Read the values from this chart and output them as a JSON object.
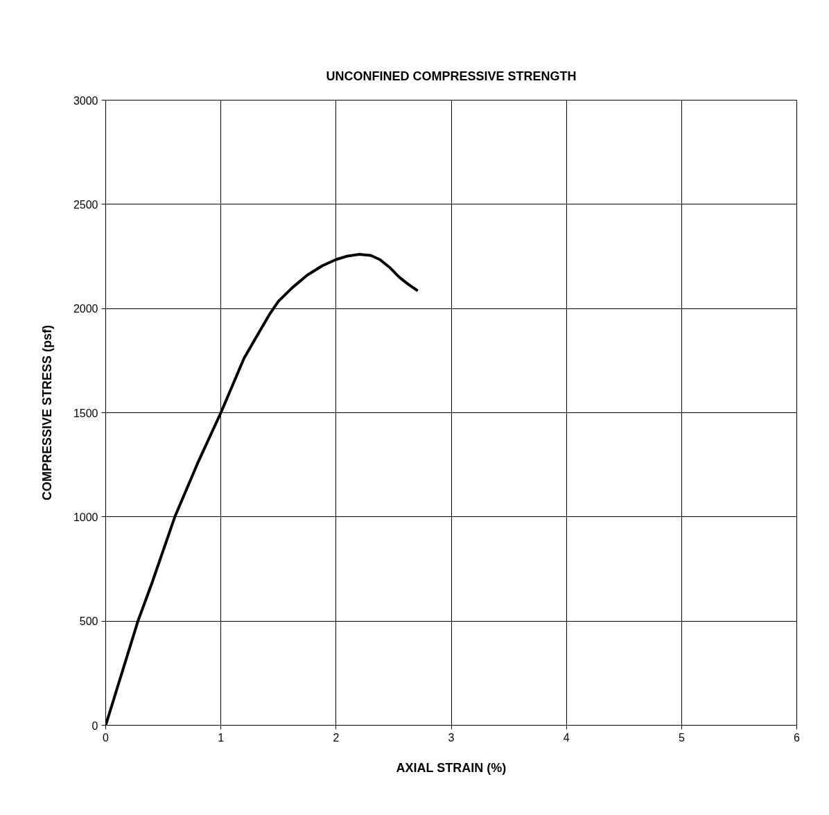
{
  "chart_data": {
    "type": "line",
    "title": "UNCONFINED COMPRESSIVE STRENGTH",
    "xlabel": "AXIAL STRAIN (%)",
    "ylabel": "COMPRESSIVE STRESS (psf)",
    "xlim": [
      0,
      6
    ],
    "xticks": [
      0,
      1,
      2,
      3,
      4,
      5,
      6
    ],
    "ylim": [
      0,
      3000
    ],
    "yticks": [
      0,
      500,
      1000,
      1500,
      2000,
      2500,
      3000
    ],
    "grid": true,
    "marker": "none",
    "line_style": "solid",
    "series": [
      {
        "color": "#000000",
        "x": [
          0,
          0.28,
          0.4,
          0.6,
          0.8,
          1.0,
          1.1,
          1.2,
          1.32,
          1.42,
          1.5,
          1.62,
          1.75,
          1.88,
          2.0,
          2.1,
          2.2,
          2.3,
          2.38,
          2.47,
          2.55,
          2.63,
          2.71
        ],
        "values": [
          0,
          500,
          680,
          1000,
          1260,
          1500,
          1630,
          1760,
          1875,
          1970,
          2035,
          2100,
          2160,
          2205,
          2235,
          2252,
          2260,
          2255,
          2235,
          2195,
          2150,
          2115,
          2085
        ]
      }
    ]
  }
}
